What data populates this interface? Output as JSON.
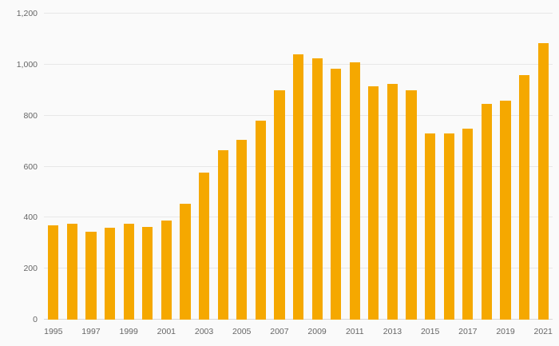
{
  "chart_data": {
    "type": "bar",
    "title": "",
    "xlabel": "",
    "ylabel": "",
    "categories": [
      "1995",
      "1996",
      "1997",
      "1998",
      "1999",
      "2000",
      "2001",
      "2002",
      "2003",
      "2004",
      "2005",
      "2006",
      "2007",
      "2008",
      "2009",
      "2010",
      "2011",
      "2012",
      "2013",
      "2014",
      "2015",
      "2016",
      "2017",
      "2018",
      "2019",
      "2020",
      "2021"
    ],
    "values": [
      370,
      375,
      345,
      360,
      375,
      365,
      390,
      455,
      575,
      665,
      705,
      780,
      900,
      1040,
      1025,
      985,
      1010,
      915,
      925,
      900,
      730,
      730,
      750,
      845,
      860,
      960,
      1085
    ],
    "ylim": [
      0,
      1200
    ],
    "ytick_interval": 200,
    "ytick_labels": [
      "0",
      "200",
      "400",
      "600",
      "800",
      "1,000",
      "1,200"
    ],
    "xtick_labels": [
      "1995",
      "1997",
      "1999",
      "2001",
      "2003",
      "2005",
      "2007",
      "2009",
      "2011",
      "2013",
      "2015",
      "2017",
      "2019",
      "2021"
    ],
    "grid": true,
    "legend": "none"
  },
  "colors": {
    "bar": "#f5a800",
    "grid": "#e7e7e7",
    "baseline": "#d6d6d6",
    "axis_text": "#666666",
    "background": "#fafafa"
  }
}
